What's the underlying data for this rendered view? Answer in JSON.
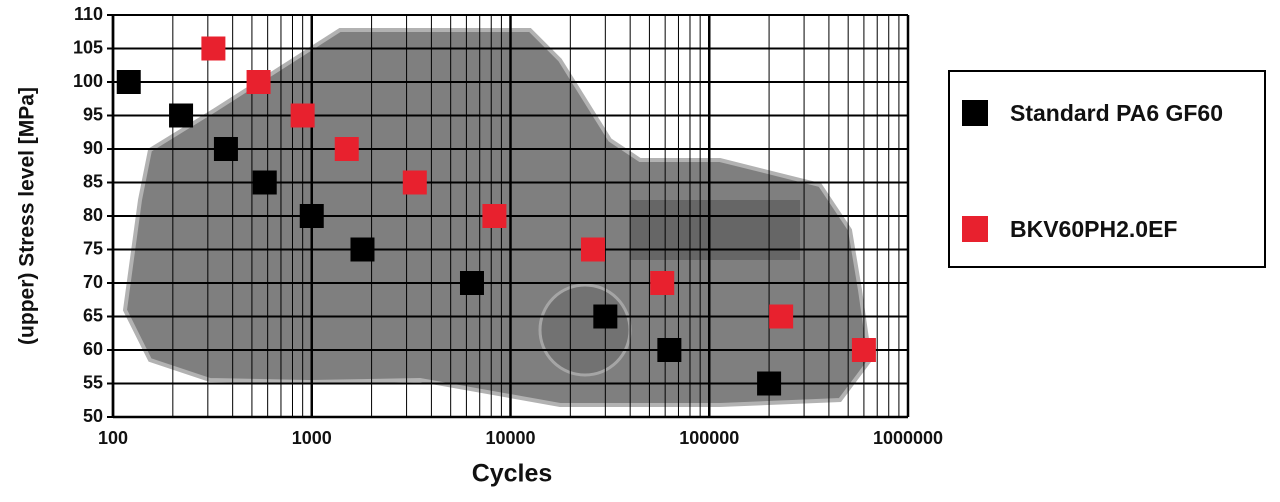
{
  "chart_data": {
    "type": "scatter",
    "x_label": "Cycles",
    "y_label": "(upper) Stress level  [MPa]",
    "log_x": true,
    "grid": true,
    "xlim": [
      100,
      1000000
    ],
    "xticks": [
      100,
      1000,
      10000,
      100000,
      1000000
    ],
    "x_minor_gridlines": [
      200,
      300,
      400,
      500,
      600,
      700,
      800,
      900,
      2000,
      3000,
      4000,
      5000,
      6000,
      7000,
      8000,
      9000,
      20000,
      30000,
      40000,
      50000,
      60000,
      70000,
      80000,
      90000,
      200000,
      300000,
      400000,
      500000,
      600000,
      700000,
      800000,
      900000
    ],
    "ylim": [
      50,
      110
    ],
    "yticks": [
      50,
      55,
      60,
      65,
      70,
      75,
      80,
      85,
      90,
      95,
      100,
      105,
      110
    ],
    "legend_position": "right",
    "series": [
      {
        "name": "Standard PA6 GF60",
        "color": "#000000",
        "x": [
          120,
          220,
          370,
          580,
          1000,
          1800,
          6400,
          30000,
          63000,
          200000
        ],
        "values": [
          100,
          95,
          90,
          85,
          80,
          75,
          70,
          65,
          60,
          55
        ]
      },
      {
        "name": "BKV60PH2.0EF",
        "color": "#e8212e",
        "x": [
          320,
          540,
          900,
          1500,
          3300,
          8300,
          26000,
          58000,
          230000,
          600000
        ],
        "values": [
          105,
          100,
          95,
          90,
          85,
          80,
          75,
          70,
          65,
          60
        ]
      }
    ]
  }
}
